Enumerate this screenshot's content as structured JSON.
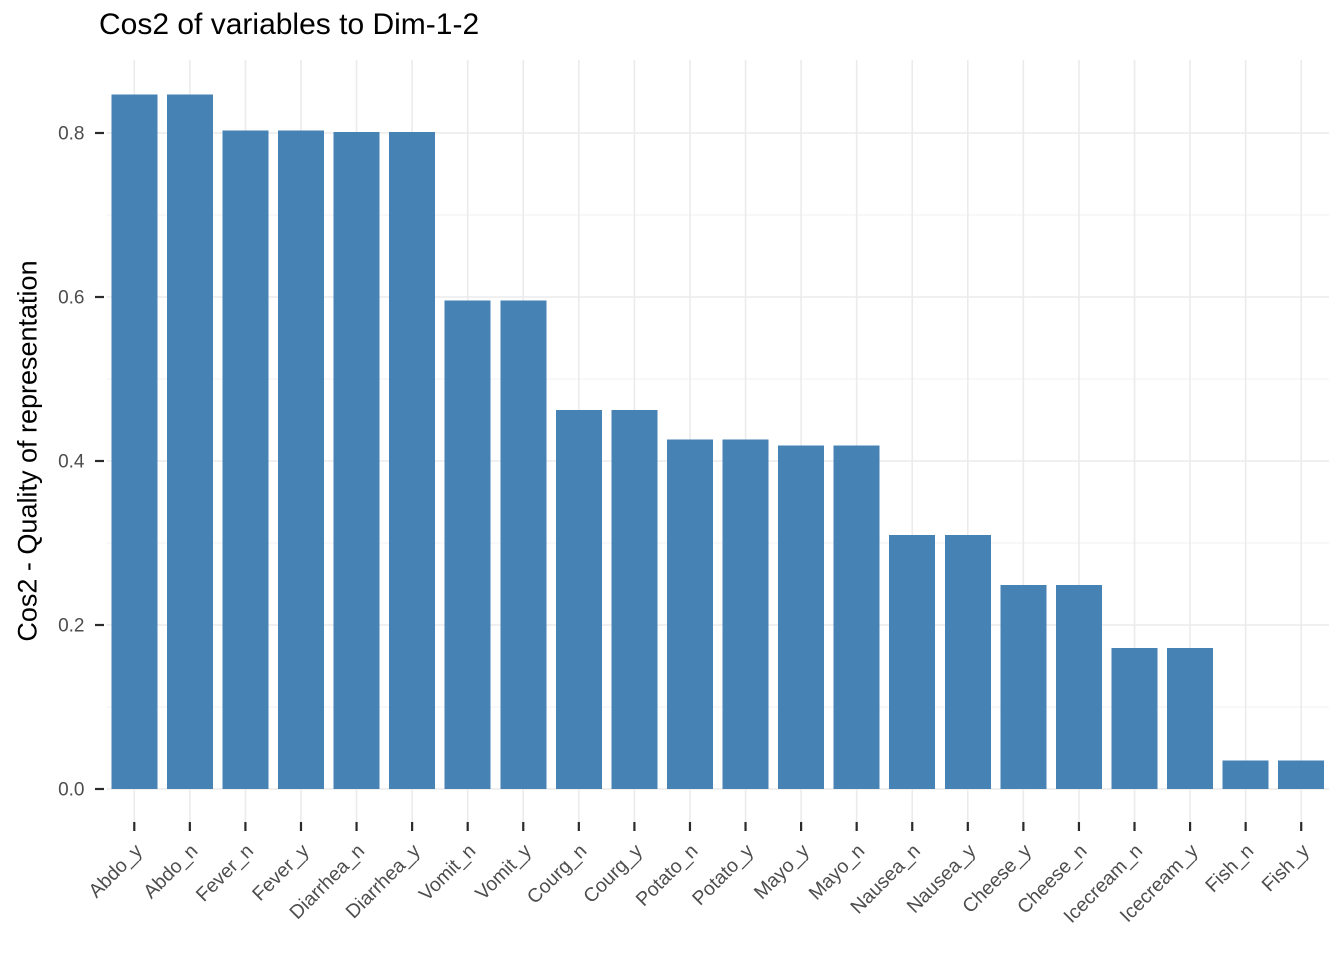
{
  "chart_data": {
    "type": "bar",
    "title": "Cos2 of variables to Dim-1-2",
    "ylabel": "Cos2 - Quality of representation",
    "xlabel": "",
    "legend": "none",
    "grid": true,
    "categories": [
      "Abdo_y",
      "Abdo_n",
      "Fever_n",
      "Fever_y",
      "Diarrhea_n",
      "Diarrhea_y",
      "Vomit_n",
      "Vomit_y",
      "Courg_n",
      "Courg_y",
      "Potato_n",
      "Potato_y",
      "Mayo_y",
      "Mayo_n",
      "Nausea_n",
      "Nausea_y",
      "Cheese_y",
      "Cheese_n",
      "Icecream_n",
      "Icecream_y",
      "Fish_n",
      "Fish_y"
    ],
    "values": [
      0.847,
      0.847,
      0.803,
      0.803,
      0.801,
      0.801,
      0.596,
      0.596,
      0.462,
      0.462,
      0.426,
      0.426,
      0.419,
      0.419,
      0.31,
      0.31,
      0.249,
      0.249,
      0.172,
      0.172,
      0.035,
      0.035
    ],
    "ylim": [
      0,
      0.889
    ],
    "y_ticks": [
      0.0,
      0.2,
      0.4,
      0.6,
      0.8
    ],
    "y_tick_labels": [
      "0.0",
      "0.2",
      "0.4",
      "0.6",
      "0.8"
    ],
    "y_minor_ticks": [
      0.1,
      0.3,
      0.5,
      0.7
    ]
  },
  "colors": {
    "bar_fill": "#4682B4",
    "grid_major": "#EBEBEB",
    "grid_minor": "#F3F3F3",
    "axis_tick": "#2B2B2B",
    "axis_text": "#4D4D4D",
    "title_text": "#000000"
  }
}
